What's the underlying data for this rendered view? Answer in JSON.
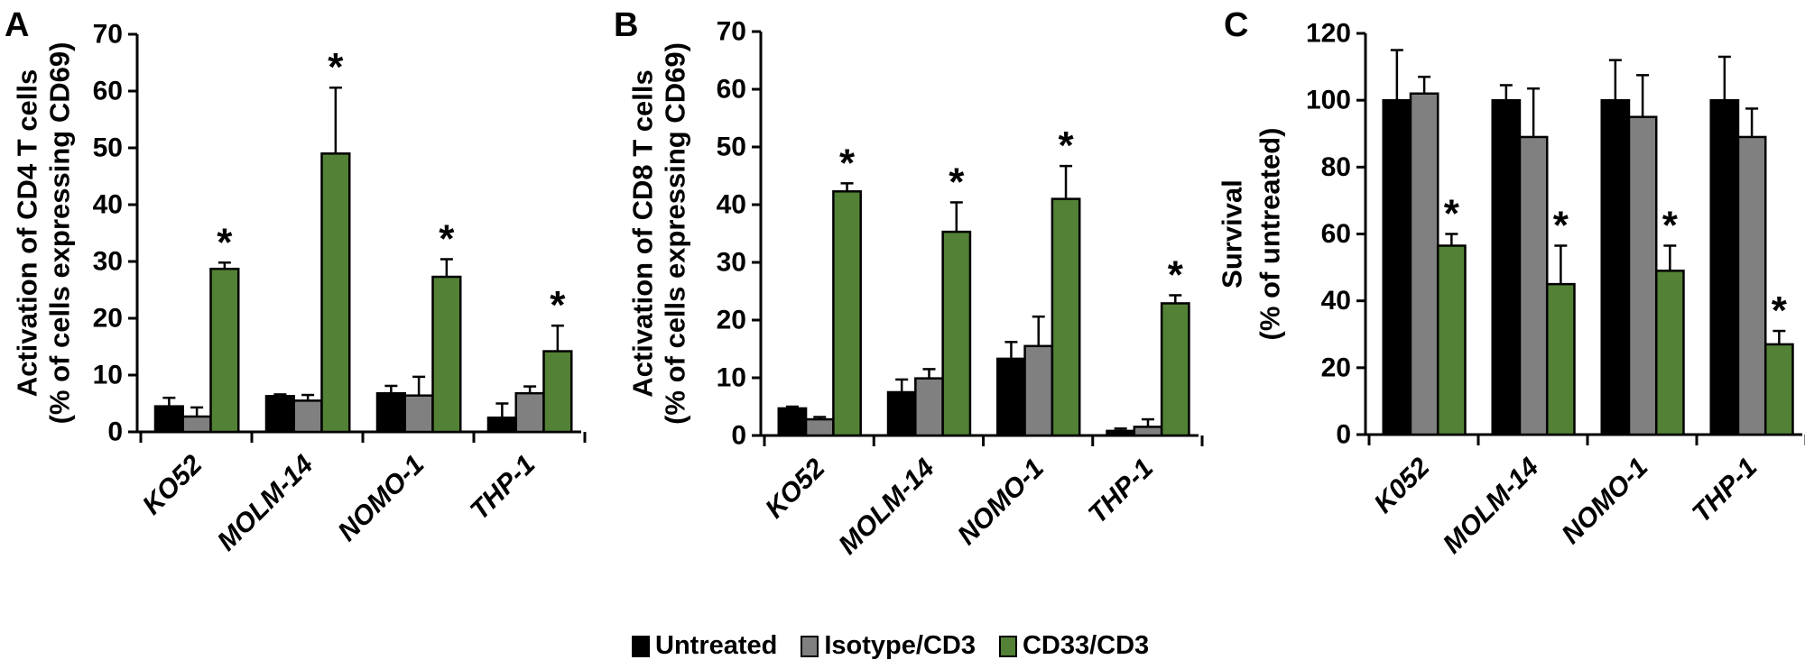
{
  "legend": [
    {
      "name": "Untreated",
      "color": "#000000"
    },
    {
      "name": "Isotype/CD3",
      "color": "#808080"
    },
    {
      "name": "CD33/CD3",
      "color": "#538135"
    }
  ],
  "chart_data": [
    {
      "type": "bar",
      "panel": "A",
      "ylabel": [
        "Activation of CD4 T cells",
        "(% of cells expressing CD69)"
      ],
      "ylim": [
        0,
        70
      ],
      "yticks": [
        0,
        10,
        20,
        30,
        40,
        50,
        60,
        70
      ],
      "categories": [
        "KO52",
        "MOLM-14",
        "NOMO-1",
        "THP-1"
      ],
      "series": [
        {
          "name": "Untreated",
          "values": [
            4.5,
            6.3,
            6.8,
            2.5
          ],
          "errors": [
            1.5,
            0.3,
            1.3,
            2.5
          ]
        },
        {
          "name": "Isotype/CD3",
          "values": [
            2.7,
            5.5,
            6.4,
            6.8
          ],
          "errors": [
            1.6,
            1.0,
            3.3,
            1.2
          ]
        },
        {
          "name": "CD33/CD3",
          "values": [
            28.7,
            49.0,
            27.3,
            14.2
          ],
          "errors": [
            1.1,
            11.6,
            3.1,
            4.5
          ],
          "significant": [
            true,
            true,
            true,
            true
          ]
        }
      ],
      "annotation": "*"
    },
    {
      "type": "bar",
      "panel": "B",
      "ylabel": [
        "Activation of CD8 T cells",
        "(% of cells expressing CD69)"
      ],
      "ylim": [
        0,
        70
      ],
      "yticks": [
        0,
        10,
        20,
        30,
        40,
        50,
        60,
        70
      ],
      "categories": [
        "KO52",
        "MOLM-14",
        "NOMO-1",
        "THP-1"
      ],
      "series": [
        {
          "name": "Untreated",
          "values": [
            4.7,
            7.5,
            13.3,
            0.8
          ],
          "errors": [
            0.3,
            2.2,
            2.9,
            0.4
          ]
        },
        {
          "name": "Isotype/CD3",
          "values": [
            2.8,
            9.9,
            15.5,
            1.5
          ],
          "errors": [
            0.4,
            1.6,
            5.1,
            1.3
          ]
        },
        {
          "name": "CD33/CD3",
          "values": [
            42.3,
            35.3,
            41.0,
            22.9
          ],
          "errors": [
            1.4,
            5.1,
            5.7,
            1.4
          ],
          "significant": [
            true,
            true,
            true,
            true
          ]
        }
      ],
      "annotation": "*"
    },
    {
      "type": "bar",
      "panel": "C",
      "ylabel": [
        "Survival",
        "(% of untreated)"
      ],
      "ylim": [
        0,
        120
      ],
      "yticks": [
        0,
        20,
        40,
        60,
        80,
        100,
        120
      ],
      "categories": [
        "K052",
        "MOLM-14",
        "NOMO-1",
        "THP-1"
      ],
      "series": [
        {
          "name": "Untreated",
          "values": [
            100,
            100,
            100,
            100
          ],
          "errors": [
            15,
            4.5,
            12,
            13
          ]
        },
        {
          "name": "Isotype/CD3",
          "values": [
            102,
            89,
            95,
            89
          ],
          "errors": [
            5,
            14.5,
            12.5,
            8.5
          ]
        },
        {
          "name": "CD33/CD3",
          "values": [
            56.5,
            45,
            49,
            27
          ],
          "errors": [
            3.5,
            11.5,
            7.5,
            4
          ],
          "significant": [
            true,
            true,
            true,
            true
          ]
        }
      ],
      "annotation": "*"
    }
  ]
}
